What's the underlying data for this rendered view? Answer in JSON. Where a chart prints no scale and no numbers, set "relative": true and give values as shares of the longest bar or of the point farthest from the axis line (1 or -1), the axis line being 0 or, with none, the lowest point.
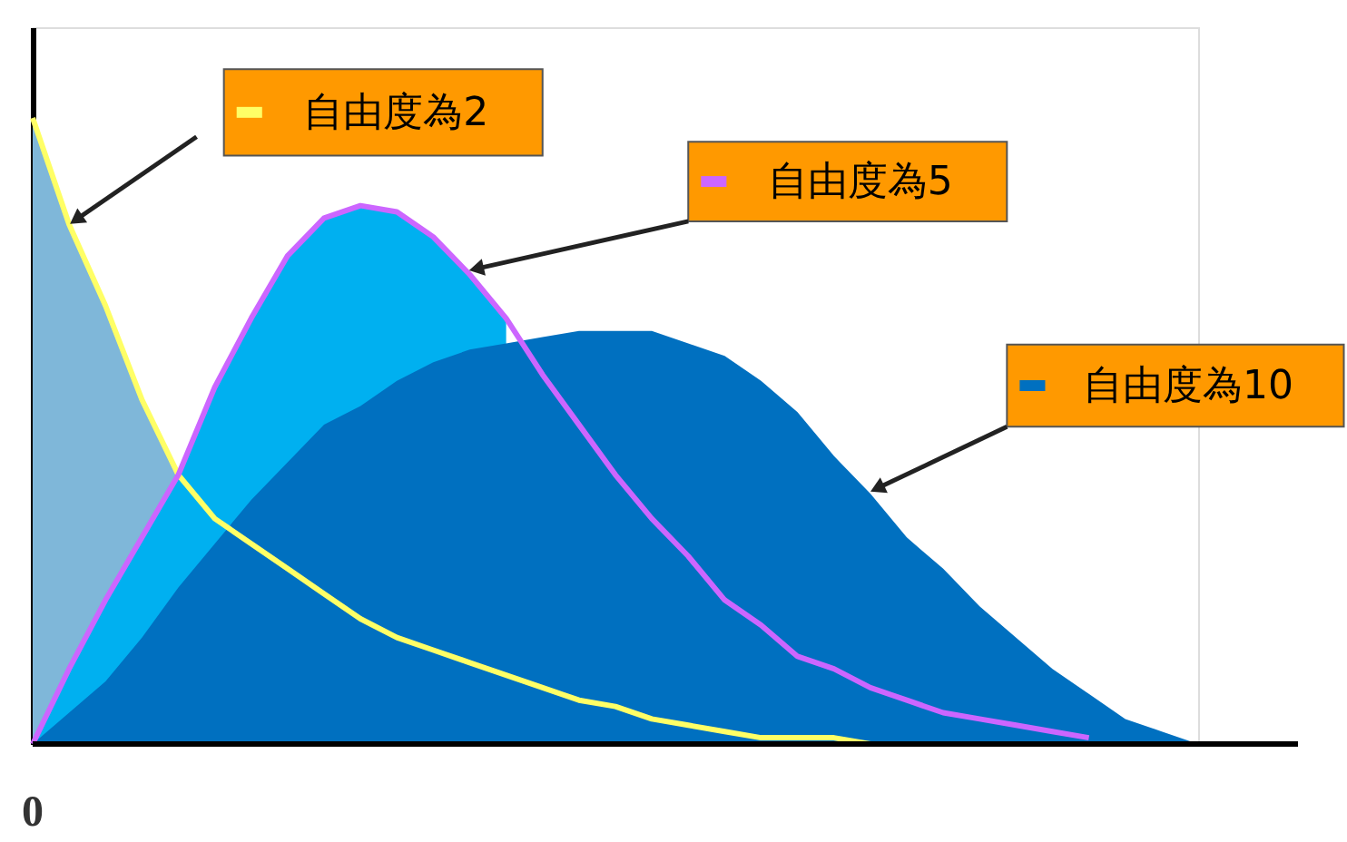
{
  "chart_data": {
    "type": "area",
    "relative": true,
    "grid": false,
    "legend": "top right",
    "annotations": [
      "0"
    ],
    "categories": [
      null,
      null,
      null,
      null,
      null,
      null,
      null,
      null,
      null,
      null,
      null,
      null,
      null,
      null,
      null,
      null,
      null,
      null,
      null,
      null,
      null,
      null,
      null,
      null,
      null,
      null,
      null,
      null,
      null,
      null,
      null,
      null,
      null
    ],
    "series": [
      {
        "type": "line",
        "name": "自由度為2",
        "color": "#ffff66",
        "values": [
          1,
          0.83,
          0.7,
          0.55,
          0.43,
          0.36,
          0.32,
          0.28,
          0.24,
          0.2,
          0.17,
          0.15,
          0.13,
          0.11,
          0.09,
          0.07,
          0.06,
          0.04,
          0.03,
          0.02,
          0.01,
          0.01,
          0.01,
          0,
          null,
          null,
          null,
          null,
          null,
          null,
          null,
          null,
          null
        ]
      },
      {
        "type": "line",
        "name": "自由度為5",
        "color": "#cc66ff",
        "values": [
          0,
          0.12,
          0.23,
          0.33,
          0.43,
          0.57,
          0.68,
          0.78,
          0.84,
          0.86,
          0.85,
          0.81,
          0.75,
          0.68,
          0.59,
          0.51,
          0.43,
          0.36,
          0.3,
          0.23,
          0.19,
          0.14,
          0.12,
          0.09,
          0.07,
          0.05,
          0.04,
          0.03,
          0.02,
          0.01,
          null,
          null,
          null
        ]
      },
      {
        "color": "#7fb7d9",
        "values": [
          1,
          0.83,
          0.7,
          0.55,
          0.43,
          null,
          null,
          null,
          null,
          null,
          null,
          null,
          null,
          null,
          null,
          null,
          null,
          null,
          null,
          null,
          null,
          null,
          null,
          null,
          null,
          null,
          null,
          null,
          null,
          null,
          null,
          null,
          null
        ]
      },
      {
        "color": "#00b0f0",
        "values": [
          0,
          0.12,
          0.23,
          0.33,
          0.43,
          0.57,
          0.68,
          0.78,
          0.84,
          0.86,
          0.85,
          0.81,
          0.75,
          0.68,
          null,
          null,
          null,
          null,
          null,
          null,
          null,
          null,
          null,
          null,
          null,
          null,
          null,
          null,
          null,
          null,
          null,
          null,
          null
        ]
      },
      {
        "name": "自由度為10",
        "color": "#0070c0",
        "values": [
          0,
          0.05,
          0.1,
          0.17,
          0.25,
          0.32,
          0.39,
          0.45,
          0.51,
          0.54,
          0.58,
          0.61,
          0.63,
          0.64,
          0.65,
          0.66,
          0.66,
          0.66,
          0.64,
          0.62,
          0.58,
          0.53,
          0.46,
          0.4,
          0.33,
          0.28,
          0.22,
          0.17,
          0.12,
          0.08,
          0.04,
          0.02,
          0
        ]
      }
    ]
  }
}
